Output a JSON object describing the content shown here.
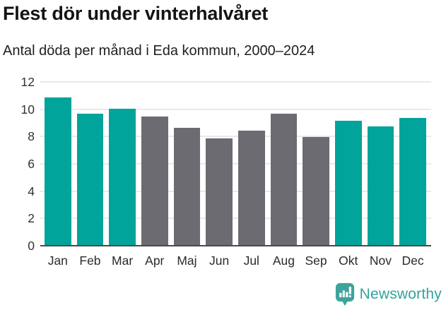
{
  "header": {
    "title": "Flest dör under vinterhalvåret",
    "subtitle": "Antal döda per månad i Eda kommun, 2000–2024"
  },
  "chart_data": {
    "type": "bar",
    "title": "Flest dör under vinterhalvåret",
    "subtitle": "Antal döda per månad i Eda kommun, 2000–2024",
    "categories": [
      "Jan",
      "Feb",
      "Mar",
      "Apr",
      "Maj",
      "Jun",
      "Jul",
      "Aug",
      "Sep",
      "Okt",
      "Nov",
      "Dec"
    ],
    "values": [
      10.8,
      9.6,
      10.0,
      9.4,
      8.6,
      7.8,
      8.4,
      9.6,
      7.9,
      9.1,
      8.7,
      9.3
    ],
    "highlighted": [
      true,
      true,
      true,
      false,
      false,
      false,
      false,
      false,
      false,
      true,
      true,
      true
    ],
    "colors": {
      "highlight": "#00a49a",
      "default": "#6c6b71"
    },
    "xlabel": "",
    "ylabel": "",
    "ylim": [
      0,
      12
    ],
    "yticks": [
      0,
      2,
      4,
      6,
      8,
      10,
      12
    ],
    "grid": true,
    "legend": false
  },
  "footer": {
    "brand": "Newsworthy",
    "logo_icon": "newsworthy-pin-bar-chart-icon",
    "brand_color": "#33a39b",
    "logo_fill": "#3ea39b"
  }
}
